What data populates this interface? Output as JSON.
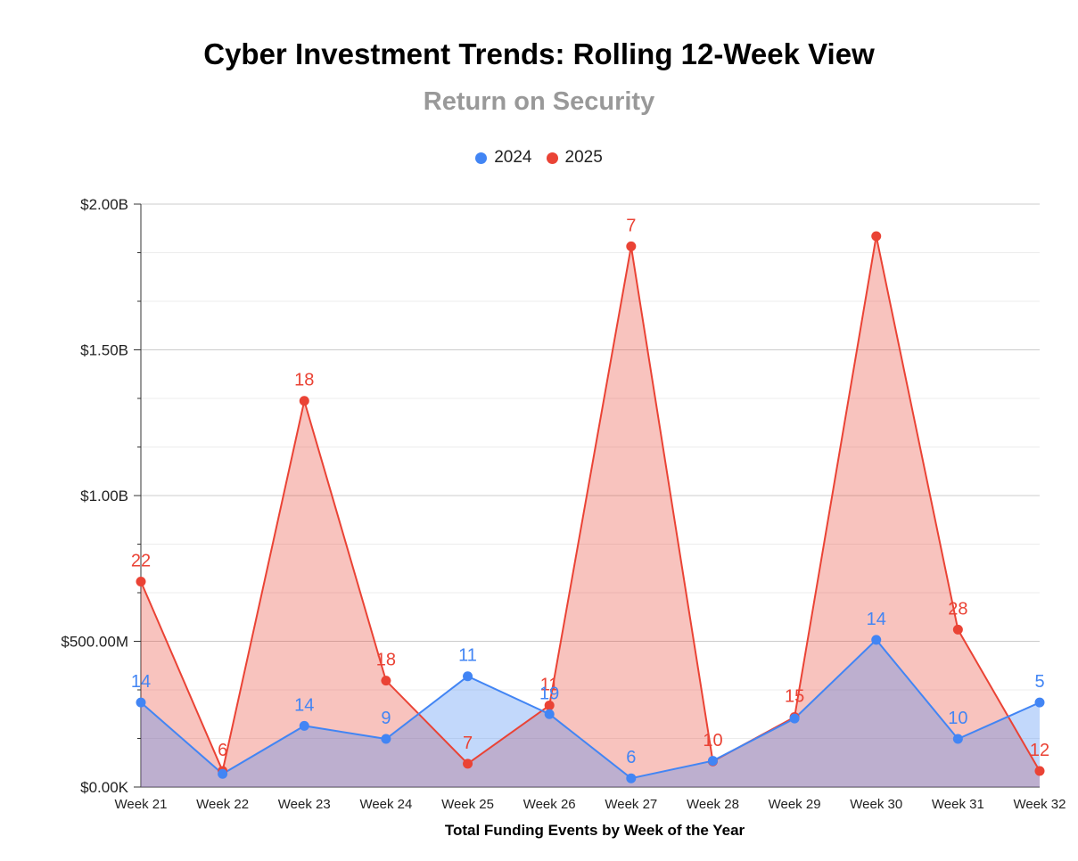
{
  "chart_data": {
    "type": "area",
    "title": "Cyber Investment Trends: Rolling 12-Week View",
    "subtitle": "Return on Security",
    "xlabel": "Total Funding Events by Week of the Year",
    "ylabel": "",
    "categories": [
      "Week 21",
      "Week 22",
      "Week 23",
      "Week 24",
      "Week 25",
      "Week 26",
      "Week 27",
      "Week 28",
      "Week 29",
      "Week 30",
      "Week 31",
      "Week 32"
    ],
    "ylim": [
      0,
      2000000000
    ],
    "y_ticks": [
      0,
      500000000,
      1000000000,
      1500000000,
      2000000000
    ],
    "y_tick_labels": [
      "$0.00K",
      "$500.00M",
      "$1.00B",
      "$1.50B",
      "$2.00B"
    ],
    "grid": true,
    "legend_position": "top",
    "series": [
      {
        "name": "2024",
        "color": "#4285F4",
        "fill": "rgba(66,133,244,0.32)",
        "values": [
          290000000,
          45000000,
          210000000,
          165000000,
          380000000,
          250000000,
          30000000,
          90000000,
          235000000,
          505000000,
          165000000,
          290000000
        ],
        "labels": [
          "14",
          "",
          "14",
          "9",
          "11",
          "19",
          "6",
          "",
          "",
          "14",
          "10",
          "5"
        ]
      },
      {
        "name": "2025",
        "color": "#EA4335",
        "fill": "rgba(234,67,53,0.32)",
        "values": [
          705000000,
          55000000,
          1325000000,
          365000000,
          80000000,
          280000000,
          1855000000,
          88000000,
          240000000,
          1890000000,
          540000000,
          55000000
        ],
        "labels": [
          "22",
          "6",
          "18",
          "18",
          "7",
          "11",
          "7",
          "10",
          "15",
          "",
          "28",
          "12"
        ]
      }
    ]
  }
}
